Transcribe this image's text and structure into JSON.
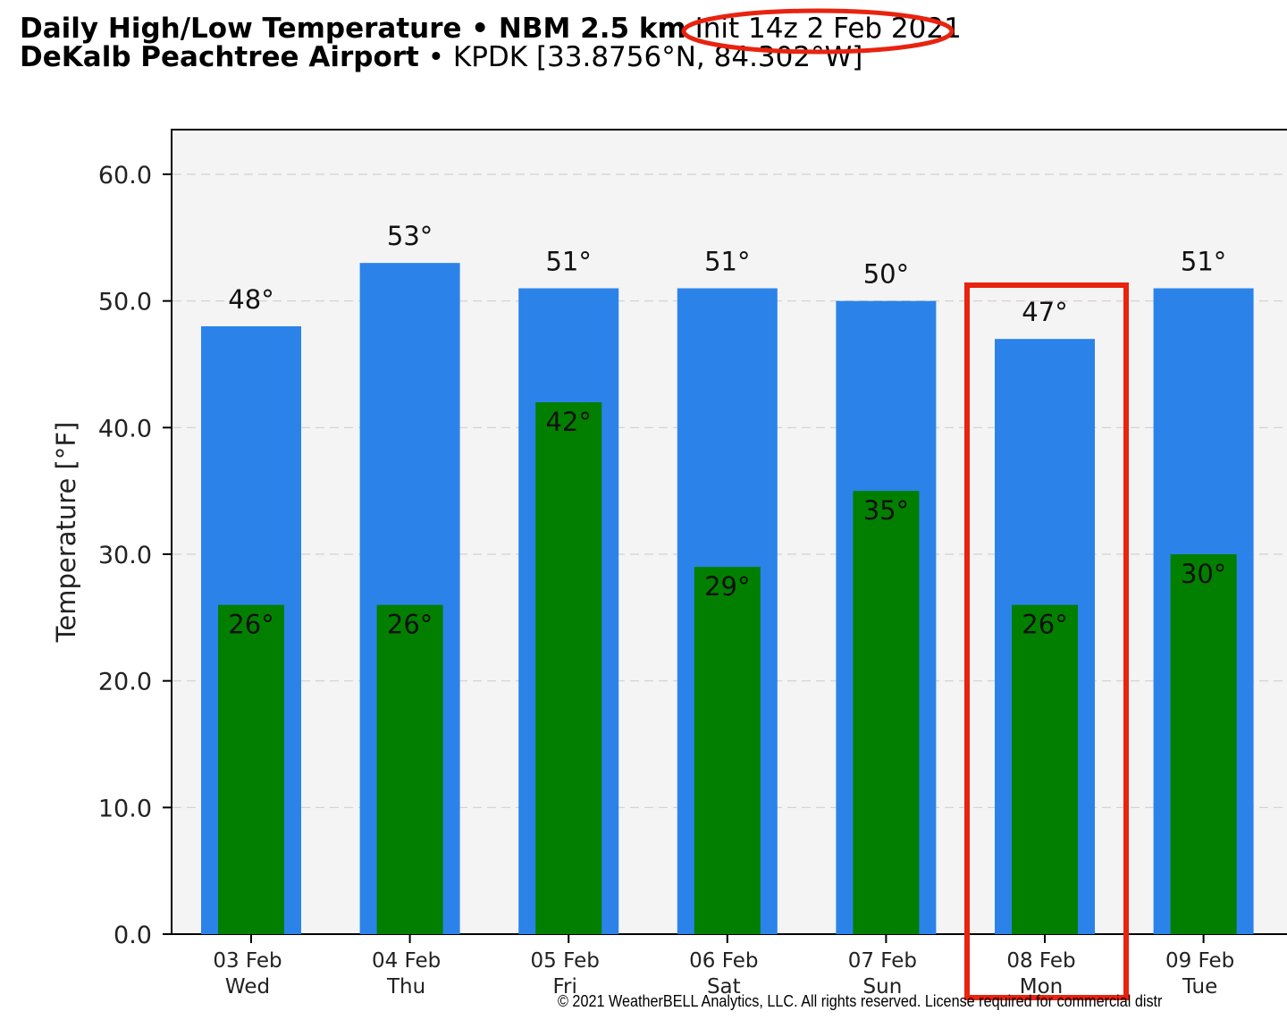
{
  "title": {
    "line1_bold": "Daily High/Low Temperature • NBM 2.5 km",
    "line1_init": "Init 14z 2 Feb 2021",
    "line2_bold": "DeKalb Peachtree Airport",
    "line2_rest": " • KPDK [33.8756°N, 84.302°W]"
  },
  "copyright": "© 2021 WeatherBELL Analytics, LLC. All rights reserved. License required for commercial distr",
  "colors": {
    "high_bar": "#2b83e9",
    "low_bar": "#037f00",
    "plot_bg": "#f4f4f4",
    "annotation_red": "#e8230f"
  },
  "chart_data": {
    "type": "bar",
    "title": "Daily High/Low Temperature • NBM 2.5 km Init 14z 2 Feb 2021",
    "ylabel": "Temperature [°F]",
    "xlabel": "",
    "ylim": [
      0,
      63
    ],
    "yticks": [
      "0.0",
      "10.0",
      "20.0",
      "30.0",
      "40.0",
      "50.0",
      "60.0"
    ],
    "ytick_values": [
      0,
      10,
      20,
      30,
      40,
      50,
      60
    ],
    "grid": "horizontal dashed",
    "categories": [
      {
        "date": "03 Feb",
        "day": "Wed"
      },
      {
        "date": "04 Feb",
        "day": "Thu"
      },
      {
        "date": "05 Feb",
        "day": "Fri"
      },
      {
        "date": "06 Feb",
        "day": "Sat"
      },
      {
        "date": "07 Feb",
        "day": "Sun"
      },
      {
        "date": "08 Feb",
        "day": "Mon"
      },
      {
        "date": "09 Feb",
        "day": "Tue"
      }
    ],
    "series": [
      {
        "values": [
          48,
          53,
          51,
          51,
          50,
          47,
          51
        ],
        "labels": [
          "48°",
          "53°",
          "51°",
          "51°",
          "50°",
          "47°",
          "51°"
        ]
      },
      {
        "values": [
          26,
          26,
          42,
          29,
          35,
          26,
          30
        ],
        "labels": [
          "26°",
          "26°",
          "42°",
          "29°",
          "35°",
          "26°",
          "30°"
        ]
      }
    ],
    "highlighted_category": "08 Feb"
  }
}
